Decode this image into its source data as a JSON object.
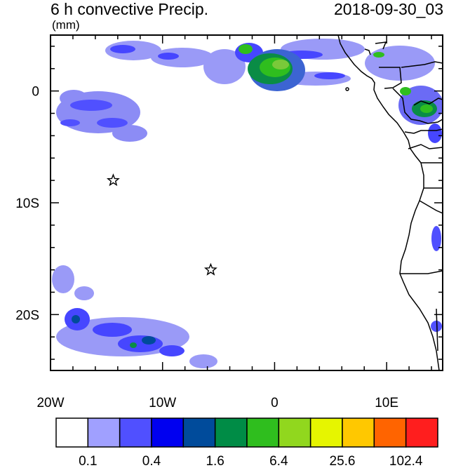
{
  "title": "6 h convective Precip.",
  "datetime": "2018-09-30_03",
  "units": "(mm)",
  "map": {
    "x_ticks": [
      {
        "lon": -20,
        "label": "20W"
      },
      {
        "lon": -10,
        "label": "10W"
      },
      {
        "lon": 0,
        "label": "0"
      },
      {
        "lon": 10,
        "label": "10E"
      }
    ],
    "y_ticks": [
      {
        "lat": 0,
        "label": "0"
      },
      {
        "lat": -10,
        "label": "10S"
      },
      {
        "lat": -20,
        "label": "20S"
      }
    ],
    "lon_range": [
      -20,
      15
    ],
    "lat_range": [
      -25,
      5
    ],
    "markers": [
      {
        "name": "star-marker-1",
        "lon": -14.4,
        "lat": -8
      },
      {
        "name": "star-marker-2",
        "lon": -5.7,
        "lat": -16
      }
    ]
  },
  "colorbar": {
    "colors": [
      "#ffffff",
      "#a0a0ff",
      "#5050ff",
      "#0000f0",
      "#004b9b",
      "#008c46",
      "#2fbe1e",
      "#91d71e",
      "#e6f500",
      "#ffc800",
      "#ff6400",
      "#ff1e1e"
    ],
    "labels": [
      "0.1",
      "0.4",
      "1.6",
      "6.4",
      "25.6",
      "102.4"
    ]
  }
}
